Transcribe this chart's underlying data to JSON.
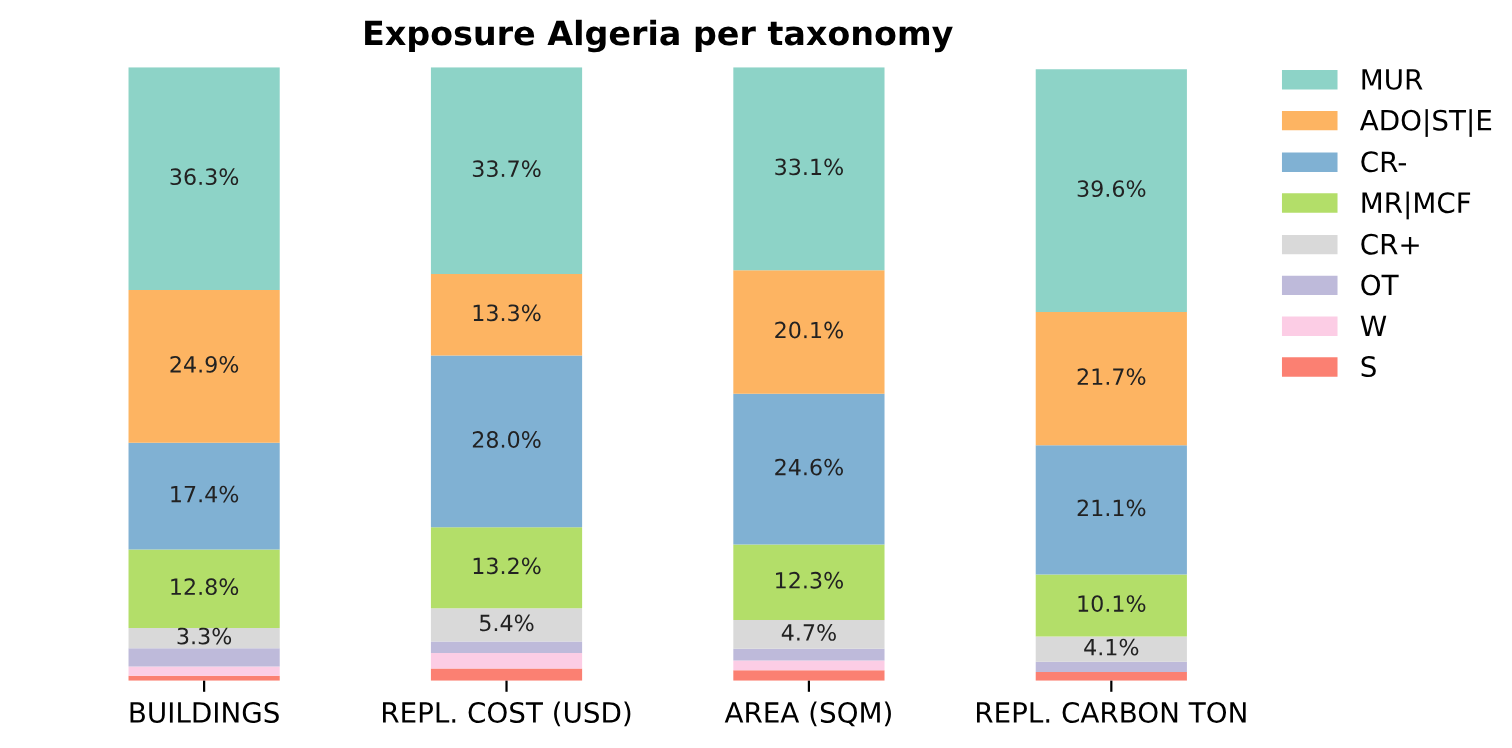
{
  "chart_data": {
    "type": "bar",
    "title": "Exposure Algeria per taxonomy",
    "stacked": true,
    "categories": [
      "BUILDINGS",
      "REPL. COST (USD)",
      "AREA (SQM)",
      "REPL. CARBON TON"
    ],
    "ylim": [
      0,
      100
    ],
    "tick_labels": "x",
    "grid": false,
    "legend": "top right",
    "series": [
      {
        "name": "S",
        "color": "#fb8072",
        "values": [
          0.8,
          2.0,
          1.7,
          1.4
        ],
        "value_labels": [
          null,
          null,
          null,
          null
        ]
      },
      {
        "name": "W",
        "color": "#fccde5",
        "values": [
          1.5,
          2.5,
          1.6,
          null
        ],
        "value_labels": [
          null,
          null,
          null,
          null
        ]
      },
      {
        "name": "OT",
        "color": "#bebada",
        "values": [
          3.0,
          1.9,
          1.9,
          1.7
        ],
        "value_labels": [
          null,
          null,
          null,
          null
        ]
      },
      {
        "name": "CR+",
        "color": "#d9d9d9",
        "values": [
          3.3,
          5.4,
          4.7,
          4.1
        ],
        "value_labels": [
          "3.3%",
          "5.4%",
          "4.7%",
          "4.1%"
        ]
      },
      {
        "name": "MR|MCF",
        "color": "#b3de69",
        "values": [
          12.8,
          13.2,
          12.3,
          10.1
        ],
        "value_labels": [
          "12.8%",
          "13.2%",
          "12.3%",
          "10.1%"
        ]
      },
      {
        "name": "CR-",
        "color": "#80b1d3",
        "values": [
          17.4,
          28.0,
          24.6,
          21.1
        ],
        "value_labels": [
          "17.4%",
          "28.0%",
          "24.6%",
          "21.1%"
        ]
      },
      {
        "name": "ADO|ST|E",
        "color": "#fdb462",
        "values": [
          24.9,
          13.3,
          20.1,
          21.7
        ],
        "value_labels": [
          "24.9%",
          "13.3%",
          "20.1%",
          "21.7%"
        ]
      },
      {
        "name": "MUR",
        "color": "#8dd3c7",
        "values": [
          36.3,
          33.7,
          33.1,
          39.6
        ],
        "value_labels": [
          "36.3%",
          "33.7%",
          "33.1%",
          "39.6%"
        ]
      }
    ]
  }
}
